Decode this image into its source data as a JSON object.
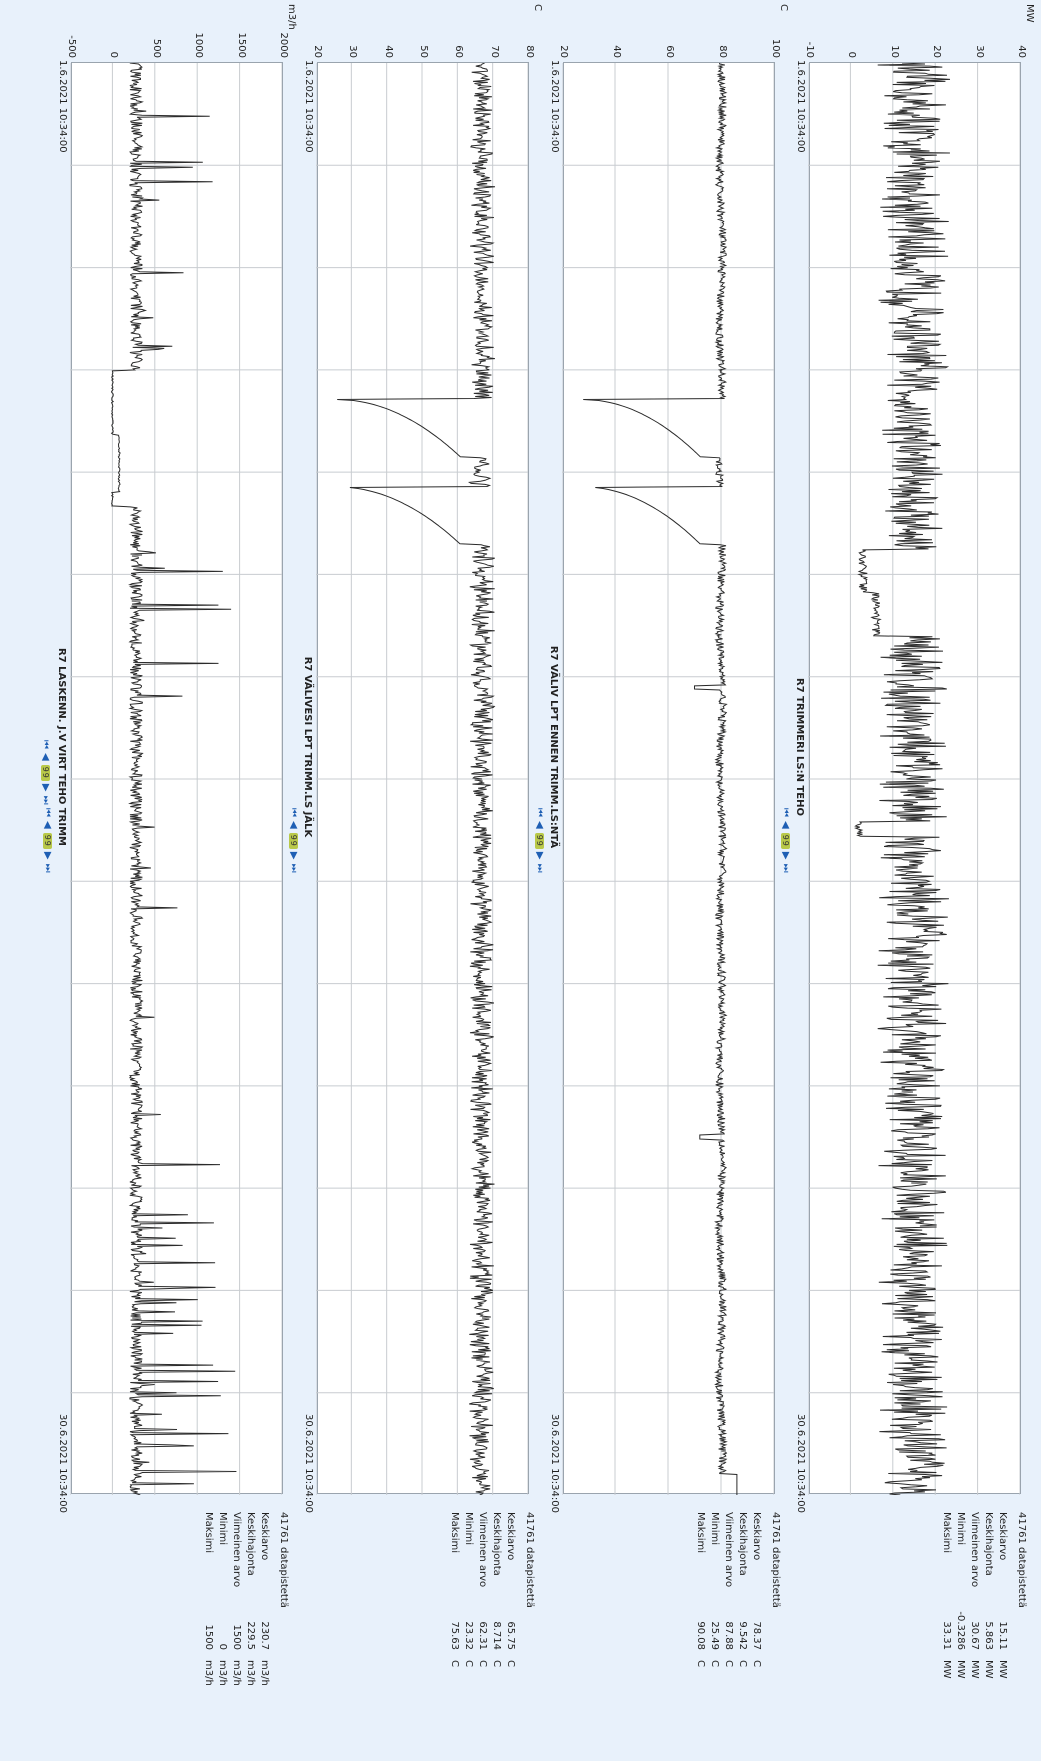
{
  "nav": {
    "first": "⏮",
    "prev": "◀",
    "page": "99",
    "next": "▶",
    "last": "⏭"
  },
  "stats_labels": {
    "mean": "Keskiarvo",
    "std": "Keskihajonta",
    "last": "Viimeinen arvo",
    "min": "Minimi",
    "max": "Maksimi"
  },
  "chart_data": [
    {
      "type": "line",
      "title": "R7 TRIMMERI LS:N TEHO",
      "ylabel": "MW",
      "ylim": [
        -10,
        40
      ],
      "yticks": [
        "-10",
        "0",
        "10",
        "20",
        "30",
        "40"
      ],
      "x_start": "1.6.2021 10:34:00",
      "x_end": "30.6.2021 10:34:00",
      "datapoints": "41761 datapistettä",
      "stats": {
        "mean": "15.11",
        "std": "5.863",
        "last": "30.67",
        "min": "-0.3286",
        "max": "33.31",
        "unit": "MW"
      },
      "series": [
        {
          "profile": "noisy",
          "base": 15,
          "amp": 6,
          "dips": [
            [
              0.34,
              0.37,
              3
            ],
            [
              0.37,
              0.4,
              6
            ],
            [
              0.53,
              0.54,
              2
            ]
          ]
        }
      ]
    },
    {
      "type": "line",
      "title": "R7 VÄLIV LPT ENNEN TRIMM.LS:NTÄ",
      "ylabel": "C",
      "ylim": [
        20,
        100
      ],
      "yticks": [
        "20",
        "40",
        "60",
        "80",
        "100"
      ],
      "x_start": "1.6.2021 10:34:00",
      "x_end": "30.6.2021 10:34:00",
      "datapoints": "41761 datapistettä",
      "stats": {
        "mean": "78.37",
        "std": "9.542",
        "last": "87.88",
        "min": "25.49",
        "max": "90.08",
        "unit": "C"
      },
      "series": [
        {
          "profile": "steady",
          "base": 80,
          "amp": 1.5,
          "drops": [
            [
              0.235,
              0.275,
              28
            ],
            [
              0.296,
              0.336,
              28
            ]
          ],
          "spikes": [
            [
              0.436,
              70
            ],
            [
              0.75,
              72
            ]
          ]
        }
      ]
    },
    {
      "type": "line",
      "title": "R7 VÄLIVESI LPT TRIMM.LS JÄLK",
      "ylabel": "C",
      "ylim": [
        20,
        80
      ],
      "yticks": [
        "20",
        "30",
        "40",
        "50",
        "60",
        "70",
        "80"
      ],
      "x_start": "1.6.2021 10:34:00",
      "x_end": "30.6.2021 10:34:00",
      "datapoints": "41761 datapistettä",
      "stats": {
        "mean": "65.75",
        "std": "8.714",
        "last": "62.31",
        "min": "23.32",
        "max": "75.63",
        "unit": "C"
      },
      "series": [
        {
          "profile": "noisy",
          "base": 67,
          "amp": 2.5,
          "drops": [
            [
              0.235,
              0.275,
              26
            ],
            [
              0.296,
              0.336,
              26
            ]
          ],
          "spikes": []
        }
      ]
    },
    {
      "type": "line",
      "title": "R7 LASKENN. J.V VIRT TEHO TRIMM",
      "ylabel": "m3/h",
      "ylim": [
        -500,
        2000
      ],
      "yticks": [
        "-500",
        "0",
        "500",
        "1000",
        "1500",
        "2000"
      ],
      "x_start": "1.6.2021 10:34:00",
      "x_end": "30.6.2021 10:34:00",
      "datapoints": "41761 datapistettä",
      "stats": {
        "mean": "230.7",
        "std": "229.5",
        "last": "1500",
        "min": "0",
        "max": "1500",
        "unit": "m3/h"
      },
      "series": [
        {
          "profile": "spiky",
          "base": 250,
          "amp": 150,
          "flat": [
            [
              0.215,
              0.26,
              0
            ],
            [
              0.26,
              0.3,
              80
            ],
            [
              0.3,
              0.31,
              0
            ]
          ]
        }
      ]
    }
  ]
}
